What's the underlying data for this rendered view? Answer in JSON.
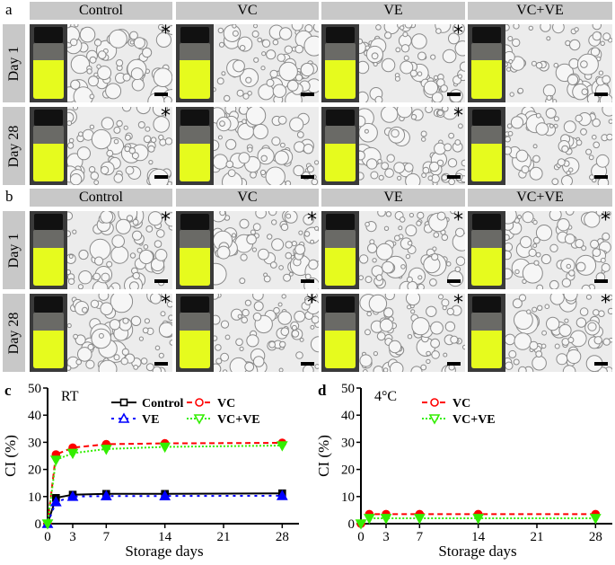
{
  "panels_top": [
    {
      "label": "a",
      "columns": [
        "Control",
        "VC",
        "VE",
        "VC+VE"
      ],
      "rows": [
        "Day 1",
        "Day 28"
      ],
      "asterisk": [
        [
          true,
          false,
          true,
          false
        ],
        [
          true,
          false,
          true,
          false
        ]
      ]
    },
    {
      "label": "b",
      "columns": [
        "Control",
        "VC",
        "VE",
        "VC+VE"
      ],
      "rows": [
        "Day 1",
        "Day 28"
      ],
      "asterisk": [
        [
          true,
          true,
          true,
          true
        ],
        [
          true,
          true,
          true,
          true
        ]
      ]
    }
  ],
  "colors": {
    "header": "#c8c8c8",
    "liquid": "#e6fb1e",
    "Control": "#000000",
    "VC": "#ff0000",
    "VE": "#0000ff",
    "VC+VE": "#33ee00"
  },
  "chart_data": [
    {
      "type": "line",
      "panel": "c",
      "annotation": "RT",
      "xlabel": "Storage days",
      "ylabel": "CI (%)",
      "xlim": [
        0,
        30
      ],
      "ylim": [
        0,
        50
      ],
      "xticks": [
        0,
        3,
        7,
        14,
        21,
        28
      ],
      "yticks": [
        0,
        10,
        20,
        30,
        40,
        50
      ],
      "legend": "top-right",
      "grid": false,
      "x": [
        0,
        1,
        3,
        7,
        14,
        28
      ],
      "series": [
        {
          "name": "Control",
          "values": [
            0,
            9.5,
            10.7,
            11,
            11,
            11.2
          ],
          "color": "#000000",
          "marker": "square",
          "dash": "solid"
        },
        {
          "name": "VC",
          "values": [
            0,
            25.5,
            28,
            29.3,
            29.6,
            29.8
          ],
          "color": "#ff0000",
          "marker": "circle",
          "dash": "dashed"
        },
        {
          "name": "VE",
          "values": [
            0,
            8,
            10,
            10.2,
            10.2,
            10.3
          ],
          "color": "#0000ff",
          "marker": "triangle-up",
          "dash": "dash-dot"
        },
        {
          "name": "VC+VE",
          "values": [
            0,
            23.5,
            26,
            27.5,
            28.3,
            28.8
          ],
          "color": "#33ee00",
          "marker": "triangle-down",
          "dash": "dotted"
        }
      ]
    },
    {
      "type": "line",
      "panel": "d",
      "annotation": "4°C",
      "xlabel": "Storage days",
      "ylabel": "CI (%)",
      "xlim": [
        0,
        30
      ],
      "ylim": [
        0,
        50
      ],
      "xticks": [
        0,
        3,
        7,
        14,
        21,
        28
      ],
      "yticks": [
        0,
        10,
        20,
        30,
        40,
        50
      ],
      "legend": "top-center",
      "grid": false,
      "x": [
        0,
        1,
        3,
        7,
        14,
        28
      ],
      "series": [
        {
          "name": "VC",
          "values": [
            0,
            3.5,
            3.5,
            3.5,
            3.5,
            3.5
          ],
          "color": "#ff0000",
          "marker": "circle",
          "dash": "dashed"
        },
        {
          "name": "VC+VE",
          "values": [
            0,
            2,
            2,
            2,
            2,
            2
          ],
          "color": "#33ee00",
          "marker": "triangle-down",
          "dash": "dotted"
        }
      ]
    }
  ]
}
